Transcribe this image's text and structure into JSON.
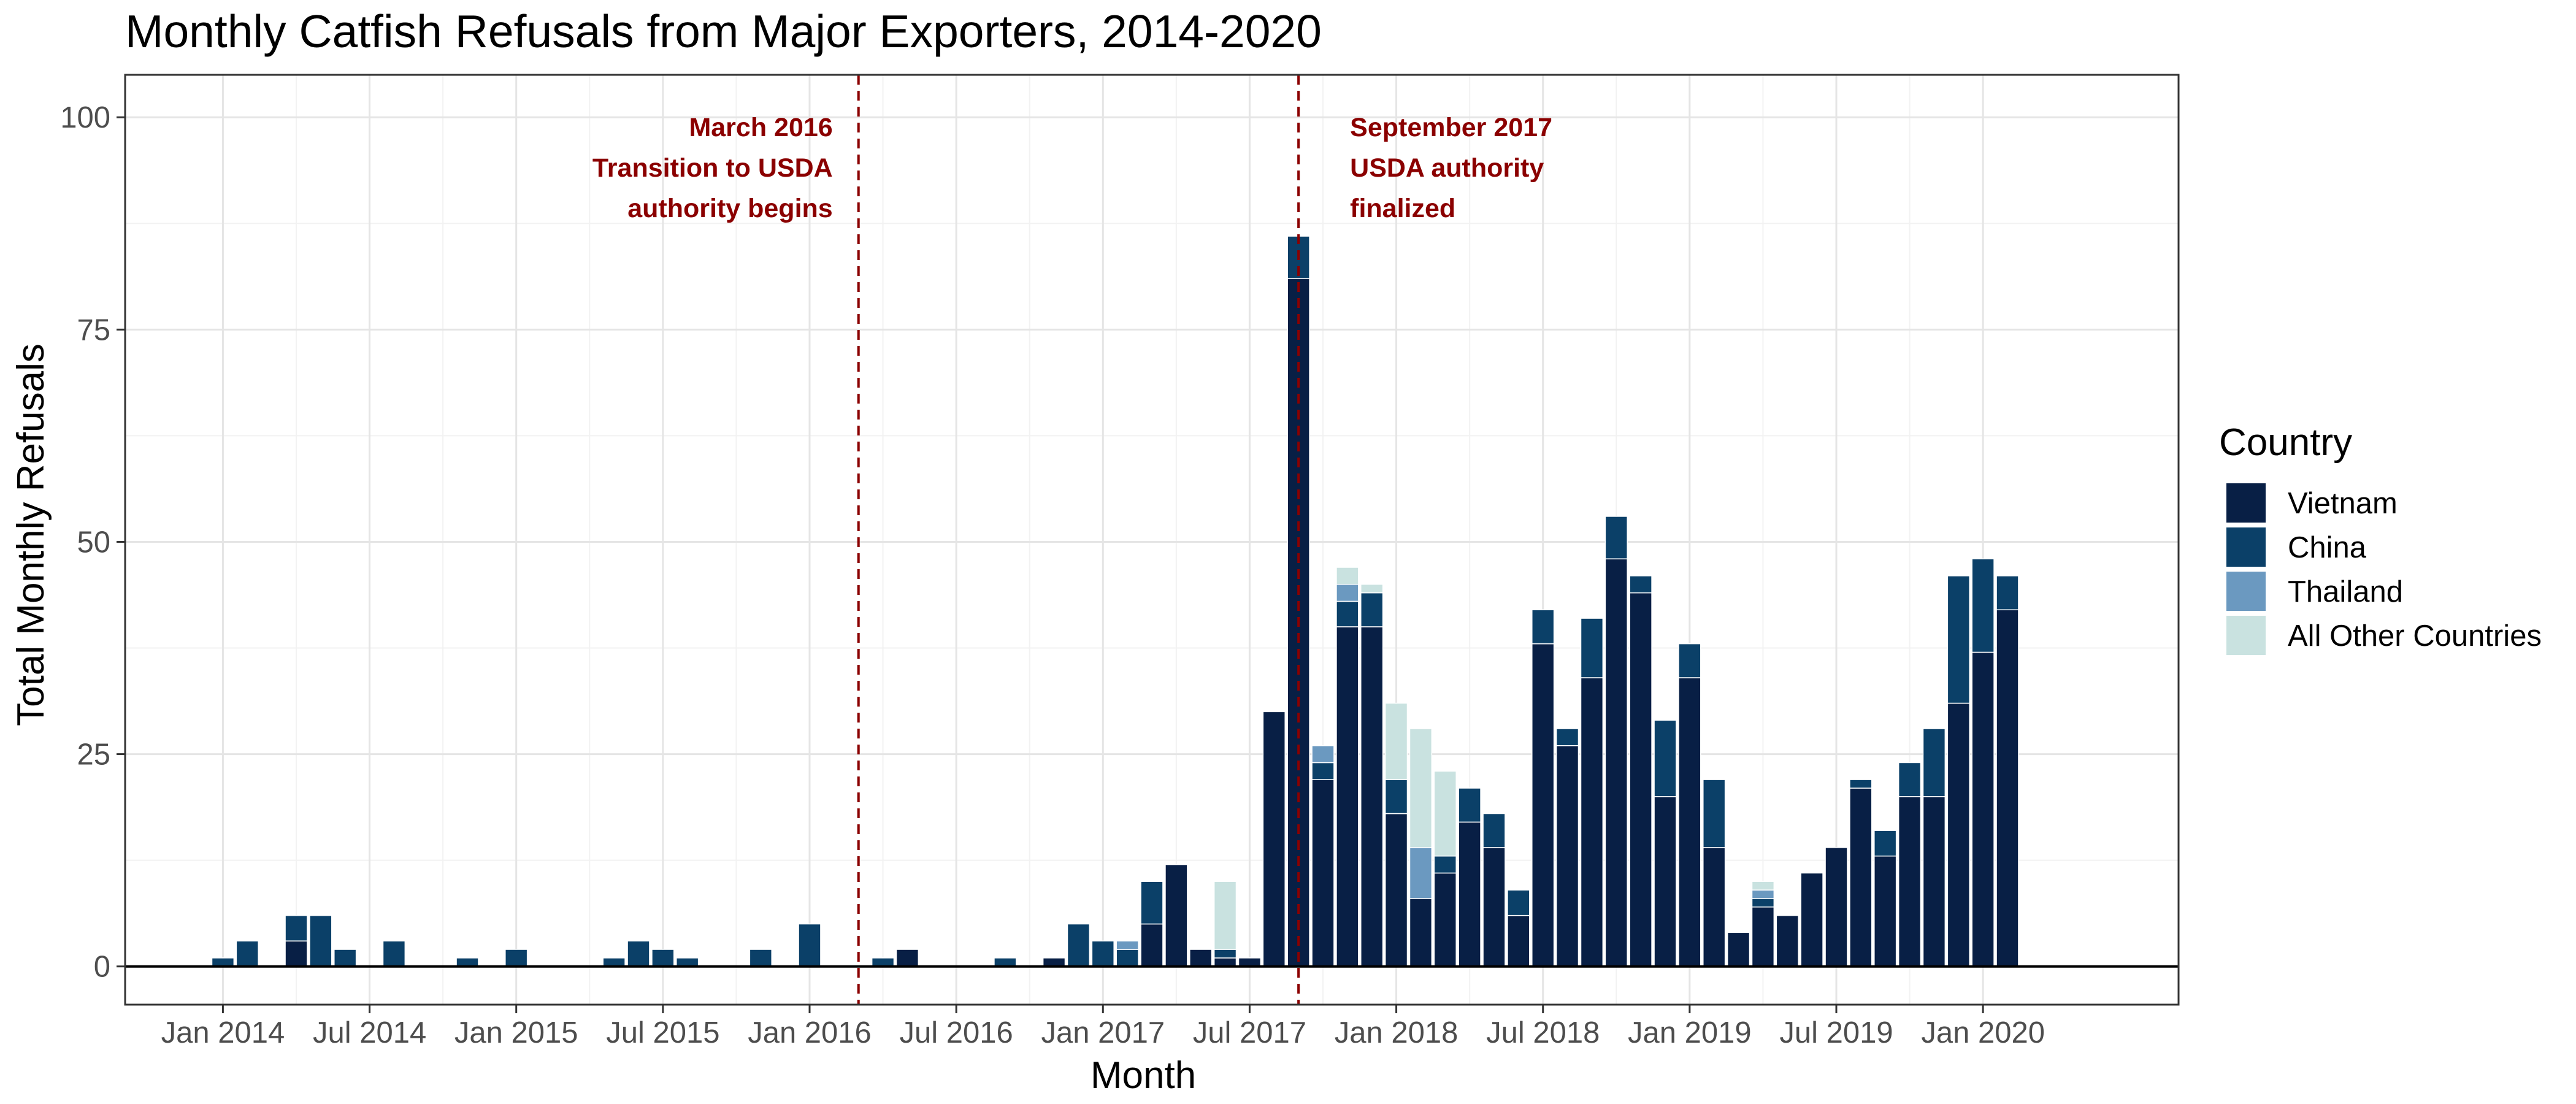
{
  "chart_data": {
    "type": "bar",
    "stacked": true,
    "title": "Monthly Catfish Refusals from Major Exporters, 2014-2020",
    "xlabel": "Month",
    "ylabel": "Total Monthly Refusals",
    "ylim": [
      -4.5,
      105
    ],
    "yticks": [
      0,
      25,
      50,
      75,
      100
    ],
    "xlim": [
      "2013-09",
      "2020-09"
    ],
    "xticks": [
      {
        "date": "2014-01",
        "label": "Jan 2014"
      },
      {
        "date": "2014-07",
        "label": "Jul 2014"
      },
      {
        "date": "2015-01",
        "label": "Jan 2015"
      },
      {
        "date": "2015-07",
        "label": "Jul 2015"
      },
      {
        "date": "2016-01",
        "label": "Jan 2016"
      },
      {
        "date": "2016-07",
        "label": "Jul 2016"
      },
      {
        "date": "2017-01",
        "label": "Jan 2017"
      },
      {
        "date": "2017-07",
        "label": "Jul 2017"
      },
      {
        "date": "2018-01",
        "label": "Jan 2018"
      },
      {
        "date": "2018-07",
        "label": "Jul 2018"
      },
      {
        "date": "2019-01",
        "label": "Jan 2019"
      },
      {
        "date": "2019-07",
        "label": "Jul 2019"
      },
      {
        "date": "2020-01",
        "label": "Jan 2020"
      }
    ],
    "grid": true,
    "legend": {
      "title": "Country",
      "placement": "right",
      "entries": [
        "Vietnam",
        "China",
        "Thailand",
        "All Other Countries"
      ]
    },
    "series": [
      {
        "name": "Vietnam",
        "color": "#081f45",
        "values": [
          {
            "month": "2014-04",
            "value": 3
          },
          {
            "month": "2016-05",
            "value": 2
          },
          {
            "month": "2016-11",
            "value": 1
          },
          {
            "month": "2017-03",
            "value": 5
          },
          {
            "month": "2017-04",
            "value": 12
          },
          {
            "month": "2017-05",
            "value": 2
          },
          {
            "month": "2017-06",
            "value": 1
          },
          {
            "month": "2017-07",
            "value": 1
          },
          {
            "month": "2017-08",
            "value": 30
          },
          {
            "month": "2017-09",
            "value": 81
          },
          {
            "month": "2017-10",
            "value": 22
          },
          {
            "month": "2017-11",
            "value": 40
          },
          {
            "month": "2017-12",
            "value": 40
          },
          {
            "month": "2018-01",
            "value": 18
          },
          {
            "month": "2018-02",
            "value": 8
          },
          {
            "month": "2018-03",
            "value": 11
          },
          {
            "month": "2018-04",
            "value": 17
          },
          {
            "month": "2018-05",
            "value": 14
          },
          {
            "month": "2018-06",
            "value": 6
          },
          {
            "month": "2018-07",
            "value": 38
          },
          {
            "month": "2018-08",
            "value": 26
          },
          {
            "month": "2018-09",
            "value": 34
          },
          {
            "month": "2018-10",
            "value": 48
          },
          {
            "month": "2018-11",
            "value": 44
          },
          {
            "month": "2018-12",
            "value": 20
          },
          {
            "month": "2019-01",
            "value": 34
          },
          {
            "month": "2019-02",
            "value": 14
          },
          {
            "month": "2019-03",
            "value": 4
          },
          {
            "month": "2019-04",
            "value": 7
          },
          {
            "month": "2019-05",
            "value": 6
          },
          {
            "month": "2019-06",
            "value": 11
          },
          {
            "month": "2019-07",
            "value": 14
          },
          {
            "month": "2019-08",
            "value": 21
          },
          {
            "month": "2019-09",
            "value": 13
          },
          {
            "month": "2019-10",
            "value": 20
          },
          {
            "month": "2019-11",
            "value": 20
          },
          {
            "month": "2019-12",
            "value": 31
          },
          {
            "month": "2020-01",
            "value": 37
          },
          {
            "month": "2020-02",
            "value": 42
          }
        ]
      },
      {
        "name": "China",
        "color": "#0b4068",
        "values": [
          {
            "month": "2014-01",
            "value": 1
          },
          {
            "month": "2014-02",
            "value": 3
          },
          {
            "month": "2014-04",
            "value": 3
          },
          {
            "month": "2014-05",
            "value": 6
          },
          {
            "month": "2014-06",
            "value": 2
          },
          {
            "month": "2014-08",
            "value": 3
          },
          {
            "month": "2014-11",
            "value": 1
          },
          {
            "month": "2015-01",
            "value": 2
          },
          {
            "month": "2015-05",
            "value": 1
          },
          {
            "month": "2015-06",
            "value": 3
          },
          {
            "month": "2015-07",
            "value": 2
          },
          {
            "month": "2015-08",
            "value": 1
          },
          {
            "month": "2015-11",
            "value": 2
          },
          {
            "month": "2016-01",
            "value": 5
          },
          {
            "month": "2016-04",
            "value": 1
          },
          {
            "month": "2016-05",
            "value": 0
          },
          {
            "month": "2016-09",
            "value": 1
          },
          {
            "month": "2016-11",
            "value": 0
          },
          {
            "month": "2016-12",
            "value": 5
          },
          {
            "month": "2017-01",
            "value": 3
          },
          {
            "month": "2017-02",
            "value": 2
          },
          {
            "month": "2017-03",
            "value": 5
          },
          {
            "month": "2017-06",
            "value": 1
          },
          {
            "month": "2017-09",
            "value": 5
          },
          {
            "month": "2017-10",
            "value": 2
          },
          {
            "month": "2017-11",
            "value": 3
          },
          {
            "month": "2017-12",
            "value": 4
          },
          {
            "month": "2018-01",
            "value": 4
          },
          {
            "month": "2018-03",
            "value": 2
          },
          {
            "month": "2018-04",
            "value": 4
          },
          {
            "month": "2018-05",
            "value": 4
          },
          {
            "month": "2018-06",
            "value": 3
          },
          {
            "month": "2018-07",
            "value": 4
          },
          {
            "month": "2018-08",
            "value": 2
          },
          {
            "month": "2018-09",
            "value": 7
          },
          {
            "month": "2018-10",
            "value": 5
          },
          {
            "month": "2018-11",
            "value": 2
          },
          {
            "month": "2018-12",
            "value": 9
          },
          {
            "month": "2019-01",
            "value": 4
          },
          {
            "month": "2019-02",
            "value": 8
          },
          {
            "month": "2019-04",
            "value": 1
          },
          {
            "month": "2019-08",
            "value": 1
          },
          {
            "month": "2019-09",
            "value": 3
          },
          {
            "month": "2019-10",
            "value": 4
          },
          {
            "month": "2019-11",
            "value": 8
          },
          {
            "month": "2019-12",
            "value": 15
          },
          {
            "month": "2020-01",
            "value": 11
          },
          {
            "month": "2020-02",
            "value": 4
          }
        ]
      },
      {
        "name": "Thailand",
        "color": "#6b99c0",
        "values": [
          {
            "month": "2017-02",
            "value": 1
          },
          {
            "month": "2017-10",
            "value": 2
          },
          {
            "month": "2017-11",
            "value": 2
          },
          {
            "month": "2018-02",
            "value": 6
          },
          {
            "month": "2018-03",
            "value": 0
          },
          {
            "month": "2019-04",
            "value": 1
          }
        ]
      },
      {
        "name": "All Other Countries",
        "color": "#c9e2e0",
        "values": [
          {
            "month": "2017-06",
            "value": 8
          },
          {
            "month": "2017-11",
            "value": 2
          },
          {
            "month": "2017-12",
            "value": 1
          },
          {
            "month": "2018-01",
            "value": 9
          },
          {
            "month": "2018-02",
            "value": 14
          },
          {
            "month": "2018-03",
            "value": 10
          },
          {
            "month": "2019-04",
            "value": 1
          }
        ]
      }
    ],
    "reference_lines": [
      {
        "date": "2016-03",
        "label_lines": [
          "March 2016",
          "Transition to USDA",
          "authority begins"
        ],
        "color": "#8b0000"
      },
      {
        "date": "2017-09",
        "label_lines": [
          "September 2017",
          "USDA authority",
          "finalized"
        ],
        "color": "#8b0000"
      }
    ]
  }
}
